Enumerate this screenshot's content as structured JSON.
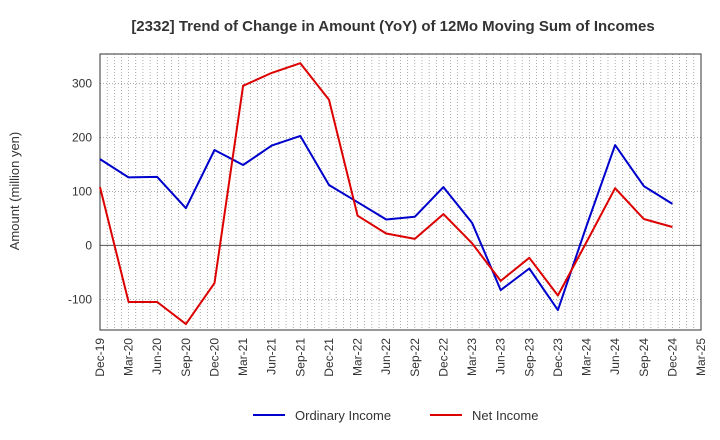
{
  "chart_data": {
    "type": "line",
    "title": "[2332]  Trend of Change in Amount (YoY) of 12Mo Moving Sum of Incomes",
    "xlabel": "",
    "ylabel": "Amount (million yen)",
    "ylim": [
      -157,
      355
    ],
    "yticks": [
      -100,
      0,
      100,
      200,
      300
    ],
    "ytick_labels": [
      "-100",
      "0",
      "100",
      "200",
      "300"
    ],
    "grid": true,
    "legend_position": "bottom-center",
    "x": [
      "Dec-19",
      "Mar-20",
      "Jun-20",
      "Sep-20",
      "Dec-20",
      "Mar-21",
      "Jun-21",
      "Sep-21",
      "Dec-21",
      "Mar-22",
      "Jun-22",
      "Sep-22",
      "Dec-22",
      "Mar-23",
      "Jun-23",
      "Sep-23",
      "Dec-23",
      "Mar-24",
      "Jun-24",
      "Sep-24",
      "Dec-24",
      "Mar-25"
    ],
    "xtick_labels": [
      "Dec-19",
      "Mar-20",
      "Jun-20",
      "Sep-20",
      "Dec-20",
      "Mar-21",
      "Jun-21",
      "Sep-21",
      "Dec-21",
      "Mar-22",
      "Jun-22",
      "Sep-22",
      "Dec-22",
      "Mar-23",
      "Jun-23",
      "Sep-23",
      "Dec-23",
      "Mar-24",
      "Jun-24",
      "Sep-24",
      "Dec-24",
      "Mar-25"
    ],
    "series": [
      {
        "name": "Ordinary Income",
        "color": "#0000cc",
        "values": [
          160,
          126,
          127,
          69,
          177,
          149,
          185,
          203,
          112,
          80,
          48,
          53,
          108,
          42,
          -83,
          -43,
          -120,
          36,
          186,
          110,
          77,
          null
        ]
      },
      {
        "name": "Net Income",
        "color": "#dd0000",
        "values": [
          108,
          -105,
          -105,
          -146,
          -70,
          296,
          320,
          338,
          270,
          55,
          22,
          12,
          58,
          4,
          -66,
          -23,
          -93,
          6,
          106,
          49,
          34,
          null
        ]
      }
    ]
  }
}
